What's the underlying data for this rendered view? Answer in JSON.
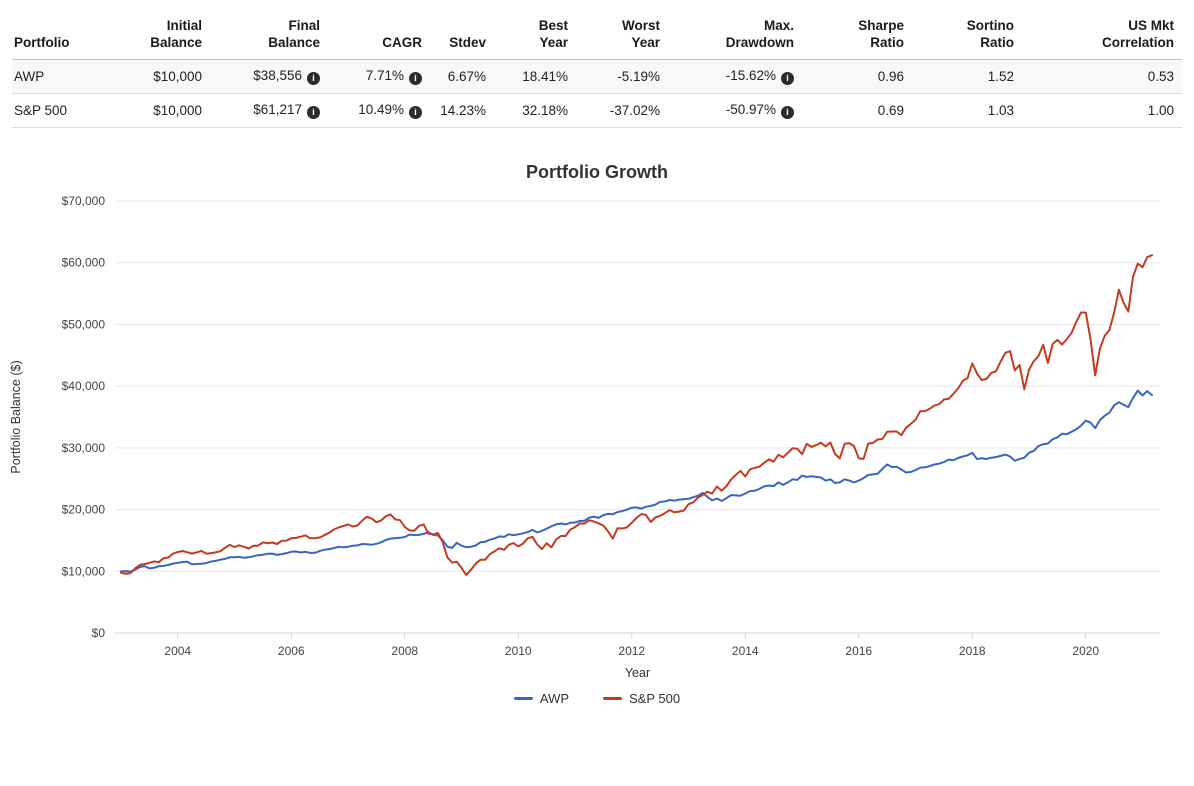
{
  "table": {
    "headers": [
      "Portfolio",
      "Initial\nBalance",
      "Final\nBalance",
      "CAGR",
      "Stdev",
      "Best\nYear",
      "Worst\nYear",
      "Max.\nDrawdown",
      "Sharpe\nRatio",
      "Sortino\nRatio",
      "US Mkt\nCorrelation"
    ],
    "rows": [
      {
        "name": "AWP",
        "initial_balance": "$10,000",
        "final_balance": "$38,556",
        "cagr": "7.71%",
        "stdev": "6.67%",
        "best_year": "18.41%",
        "worst_year": "-5.19%",
        "max_drawdown": "-15.62%",
        "sharpe_ratio": "0.96",
        "sortino_ratio": "1.52",
        "us_mkt_correlation": "0.53"
      },
      {
        "name": "S&P 500",
        "initial_balance": "$10,000",
        "final_balance": "$61,217",
        "cagr": "10.49%",
        "stdev": "14.23%",
        "best_year": "32.18%",
        "worst_year": "-37.02%",
        "max_drawdown": "-50.97%",
        "sharpe_ratio": "0.69",
        "sortino_ratio": "1.03",
        "us_mkt_correlation": "1.00"
      }
    ],
    "info_icon": "info-circle"
  },
  "chart_data": {
    "type": "line",
    "title": "Portfolio Growth",
    "xlabel": "Year",
    "ylabel": "Portfolio Balance ($)",
    "ylim": [
      0,
      70000
    ],
    "y_ticks": [
      0,
      10000,
      20000,
      30000,
      40000,
      50000,
      60000,
      70000
    ],
    "x_ticks": [
      2004,
      2006,
      2008,
      2010,
      2012,
      2014,
      2016,
      2018,
      2020
    ],
    "start_year": 2003,
    "end_year": 2021.25,
    "points_per_year": 12,
    "grid": true,
    "legend_position": "bottom",
    "grid_color": "#e6e6e6",
    "axis_color": "#ccd6eb",
    "tick_label_color": "#444444",
    "series": [
      {
        "name": "AWP",
        "color": "#3a65c2",
        "values": [
          9980,
          10030,
          9960,
          10250,
          10700,
          10820,
          10460,
          10560,
          10830,
          10880,
          11030,
          11250,
          11360,
          11500,
          11560,
          11130,
          11180,
          11210,
          11330,
          11570,
          11680,
          11880,
          12000,
          12280,
          12290,
          12330,
          12190,
          12280,
          12430,
          12600,
          12680,
          12830,
          12870,
          12660,
          12780,
          12950,
          13150,
          13210,
          13050,
          13150,
          12980,
          13000,
          13270,
          13500,
          13600,
          13750,
          13950,
          13900,
          13970,
          14140,
          14200,
          14420,
          14390,
          14300,
          14450,
          14700,
          15070,
          15290,
          15370,
          15420,
          15560,
          15950,
          15880,
          15900,
          16050,
          16350,
          15900,
          15800,
          15060,
          14000,
          13795,
          14620,
          14150,
          13900,
          13990,
          14180,
          14700,
          14780,
          15120,
          15310,
          15660,
          15570,
          16000,
          15860,
          16000,
          16150,
          16350,
          16700,
          16300,
          16550,
          16900,
          17300,
          17600,
          17750,
          17600,
          17850,
          17900,
          18150,
          18200,
          18700,
          18850,
          18650,
          19100,
          19300,
          19250,
          19600,
          19750,
          20000,
          20300,
          20350,
          20150,
          20450,
          20600,
          20800,
          21250,
          21300,
          21550,
          21450,
          21600,
          21700,
          21750,
          22000,
          22250,
          22700,
          22050,
          21500,
          21800,
          21400,
          21850,
          22350,
          22300,
          22250,
          22600,
          23000,
          23050,
          23350,
          23750,
          23900,
          23800,
          24400,
          24000,
          24400,
          24900,
          24800,
          25500,
          25300,
          25400,
          25300,
          25200,
          24700,
          24900,
          24300,
          24400,
          24900,
          24700,
          24400,
          24700,
          25100,
          25600,
          25700,
          25800,
          26600,
          27300,
          26900,
          26950,
          26500,
          26000,
          26100,
          26400,
          26800,
          26850,
          27050,
          27300,
          27450,
          27700,
          28100,
          28000,
          28350,
          28600,
          28800,
          29200,
          28200,
          28300,
          28200,
          28400,
          28500,
          28700,
          28900,
          28600,
          27900,
          28200,
          28400,
          29200,
          29500,
          30300,
          30600,
          30700,
          31400,
          31700,
          32300,
          32200,
          32600,
          33000,
          33600,
          34400,
          34100,
          33200,
          34500,
          35200,
          35700,
          36900,
          37400,
          37000,
          36600,
          38100,
          39300,
          38500,
          39200,
          38556
        ]
      },
      {
        "name": "S&P 500",
        "color": "#c43b22",
        "values": [
          9750,
          9600,
          9700,
          10480,
          11030,
          11170,
          11370,
          11600,
          11470,
          12120,
          12230,
          12870,
          13110,
          13290,
          13090,
          12880,
          13060,
          13310,
          12870,
          12920,
          13060,
          13260,
          13800,
          14270,
          13920,
          14210,
          13960,
          13700,
          14130,
          14150,
          14680,
          14550,
          14660,
          14420,
          14960,
          14970,
          15360,
          15410,
          15600,
          15810,
          15350,
          15370,
          15470,
          15840,
          16240,
          16770,
          17090,
          17330,
          17590,
          17250,
          17440,
          18220,
          18850,
          18540,
          17960,
          18230,
          18910,
          19220,
          18410,
          18280,
          17190,
          16630,
          16560,
          17360,
          17590,
          16100,
          15970,
          16200,
          14760,
          12280,
          11400,
          11520,
          10550,
          9420,
          10250,
          11230,
          11860,
          11880,
          12780,
          13240,
          13740,
          13480,
          14290,
          14570,
          14040,
          14480,
          15350,
          15590,
          14350,
          13600,
          14550,
          13890,
          15130,
          15710,
          15710,
          16760,
          17160,
          17740,
          17750,
          18270,
          18070,
          17770,
          17410,
          16460,
          15300,
          16980,
          16940,
          17110,
          17880,
          18650,
          19260,
          19140,
          17990,
          18730,
          18990,
          19420,
          19920,
          19560,
          19670,
          19850,
          20870,
          21160,
          21950,
          22370,
          22900,
          22590,
          23740,
          23050,
          23770,
          24870,
          25620,
          26270,
          25360,
          26520,
          26750,
          26950,
          27580,
          28150,
          27760,
          28870,
          28470,
          29160,
          29940,
          29870,
          28970,
          30640,
          30150,
          30440,
          30830,
          30240,
          30870,
          29010,
          28290,
          30680,
          30770,
          30280,
          28300,
          28200,
          30690,
          30810,
          31360,
          31440,
          32600,
          32650,
          32660,
          32060,
          33250,
          33900,
          34550,
          35920,
          35960,
          36330,
          36840,
          37070,
          37830,
          37950,
          38730,
          39640,
          40850,
          41300,
          43670,
          42060,
          40990,
          41150,
          42140,
          42400,
          43980,
          45410,
          45670,
          42550,
          43410,
          39490,
          42660,
          44030,
          44880,
          46700,
          43730,
          46810,
          47490,
          46740,
          47610,
          48640,
          50410,
          51930,
          51910,
          47630,
          41750,
          46050,
          48150,
          49100,
          51880,
          55610,
          53500,
          52080,
          57740,
          59860,
          59260,
          60900,
          61217
        ]
      }
    ]
  }
}
